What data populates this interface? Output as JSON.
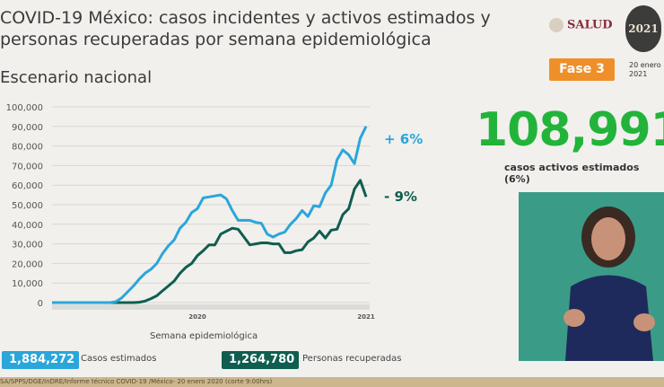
{
  "header": {
    "title": "COVID-19 México: casos incidentes y activos estimados y\npersonas recuperadas por semana epidemiológica",
    "subtitle": "Escenario nacional",
    "logo_salud": "SALUD",
    "logo_year": "2021",
    "phase_badge": "Fase 3",
    "date": "20 enero\n2021"
  },
  "active": {
    "value": "108,991",
    "label": "casos activos estimados (6%)"
  },
  "chart_data": {
    "type": "line",
    "xlabel": "Semana epidemiológica",
    "ylabel": "",
    "x_year_labels": [
      "2020",
      "2021"
    ],
    "ylim": [
      0,
      100000
    ],
    "yticks": [
      0,
      10000,
      20000,
      30000,
      40000,
      50000,
      60000,
      70000,
      80000,
      90000,
      100000
    ],
    "ytick_labels": [
      "0",
      "10,000",
      "20,000",
      "30,000",
      "40,000",
      "50,000",
      "60,000",
      "70,000",
      "80,000",
      "90,000",
      "100,000"
    ],
    "grid": true,
    "colors": {
      "casos": "#2aa6da",
      "recuperadas": "#0f5e4f"
    },
    "series": [
      {
        "name": "Casos estimados",
        "change": "+ 6%",
        "total": "1,884,272",
        "values": [
          0,
          0,
          0,
          0,
          0,
          0,
          0,
          0,
          0,
          0,
          0,
          500,
          2500,
          5500,
          8500,
          12000,
          15000,
          17000,
          20000,
          25000,
          29000,
          32000,
          38000,
          41000,
          46000,
          48000,
          53500,
          54000,
          54500,
          55000,
          53000,
          47000,
          42000,
          42000,
          42000,
          41000,
          40500,
          35000,
          33500,
          35000,
          36000,
          40000,
          43000,
          47000,
          44000,
          49500,
          49000,
          56000,
          60000,
          73000,
          78000,
          75500,
          71000,
          84000,
          90000
        ]
      },
      {
        "name": "Personas recuperadas",
        "change": "- 9%",
        "total": "1,264,780",
        "values": [
          0,
          0,
          0,
          0,
          0,
          0,
          0,
          0,
          0,
          0,
          0,
          0,
          0,
          0,
          0,
          200,
          800,
          2000,
          3500,
          6000,
          8500,
          11000,
          15000,
          18000,
          20000,
          24000,
          26500,
          29500,
          29500,
          35000,
          36500,
          38000,
          37500,
          33500,
          29500,
          30000,
          30500,
          30500,
          30000,
          30000,
          25500,
          25500,
          26500,
          27000,
          31000,
          33000,
          36500,
          33000,
          37000,
          37500,
          45000,
          48000,
          58000,
          62500,
          54000
        ]
      }
    ]
  },
  "footer": "SA/SPPS/DGE/InDRE/Informe técnico COVID-19 /México- 20 enero 2020 (corte 9:00hrs)"
}
